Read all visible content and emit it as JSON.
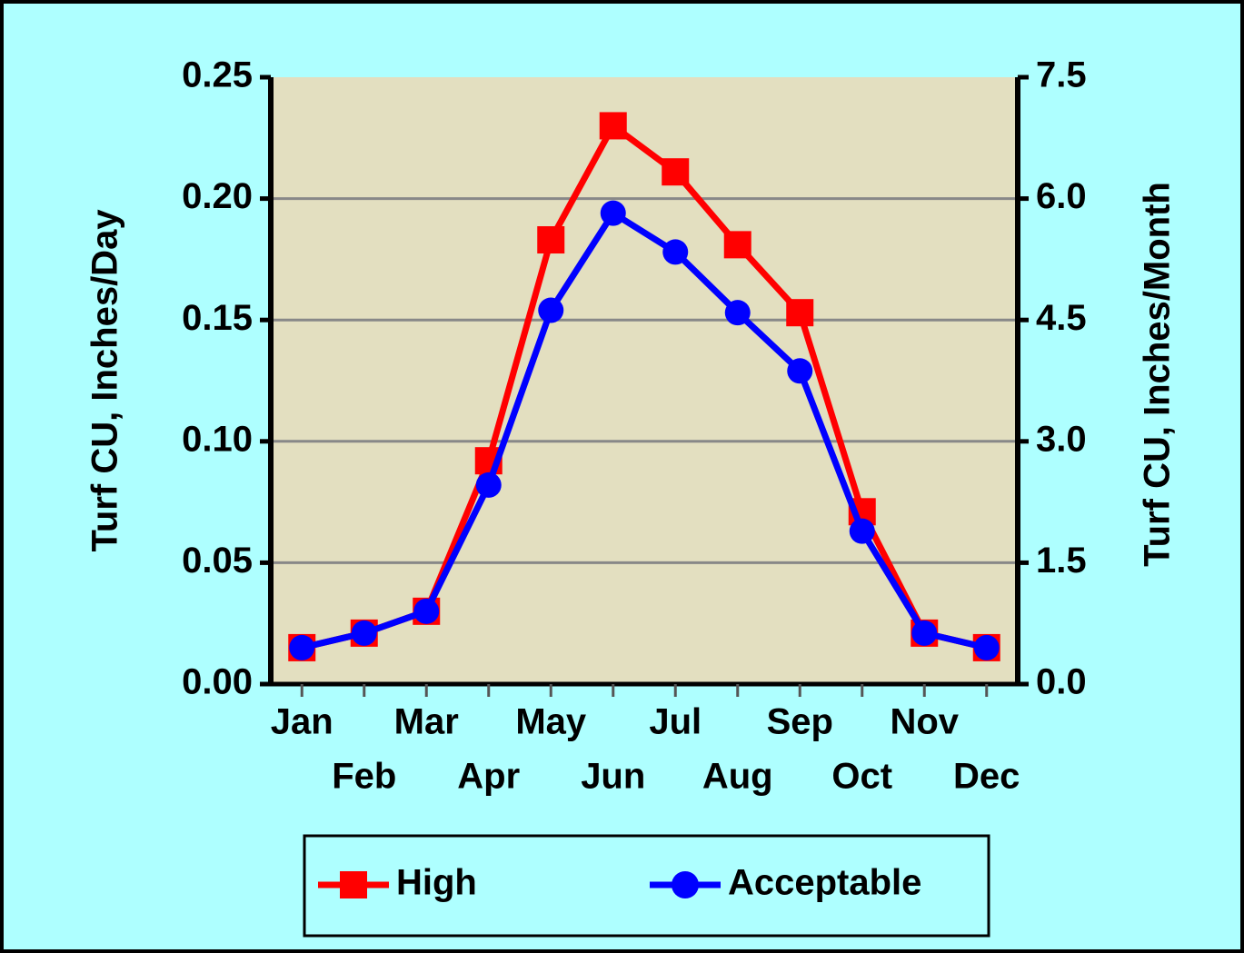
{
  "chart_data": {
    "type": "line",
    "ylabel": "Turf CU, Inches/Day",
    "y2label": "Turf CU, Inches/Month",
    "categories": [
      "Jan",
      "Feb",
      "Mar",
      "Apr",
      "May",
      "Jun",
      "Jul",
      "Aug",
      "Sep",
      "Oct",
      "Nov",
      "Dec"
    ],
    "series": [
      {
        "name": "High",
        "color": "#ff0000",
        "marker": "square",
        "values": [
          0.015,
          0.021,
          0.03,
          0.092,
          0.183,
          0.23,
          0.211,
          0.181,
          0.153,
          0.071,
          0.021,
          0.015
        ]
      },
      {
        "name": "Acceptable",
        "color": "#0000ff",
        "marker": "circle",
        "values": [
          0.015,
          0.021,
          0.03,
          0.082,
          0.154,
          0.194,
          0.178,
          0.153,
          0.129,
          0.063,
          0.021,
          0.015
        ]
      }
    ],
    "ylim": [
      0,
      0.25
    ],
    "yticks": [
      {
        "value": 0,
        "label": "0.00"
      },
      0.05,
      {
        "value": 0.1,
        "label": "0.10"
      },
      0.15,
      {
        "value": 0.2,
        "label": "0.20"
      },
      0.25
    ],
    "y2lim": [
      0,
      7.5
    ],
    "y2ticks": [
      {
        "value": 0,
        "label": "0.0"
      },
      1.5,
      {
        "value": 3,
        "label": "3.0"
      },
      4.5,
      {
        "value": 6,
        "label": "6.0"
      },
      7.5
    ],
    "grid": true,
    "legend": "bottom"
  }
}
